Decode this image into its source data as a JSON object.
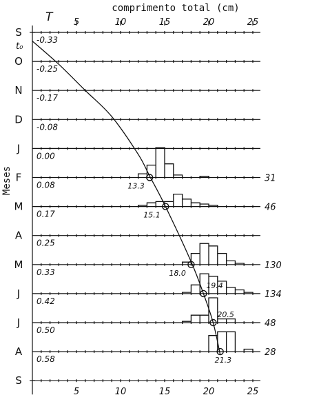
{
  "chart_data": {
    "type": "line",
    "title": "",
    "xlabel": "comprimento total (cm)",
    "ylabel": "Meses",
    "xlim": [
      0,
      25
    ],
    "x_ticks_top": [
      5,
      10,
      15,
      20,
      25
    ],
    "x_ticks_bottom": [
      5,
      10,
      15,
      20,
      25
    ],
    "t_label": "T",
    "t0_label": "t₀",
    "months": [
      "S",
      "O",
      "N",
      "D",
      "J",
      "F",
      "M",
      "A",
      "M",
      "J",
      "J",
      "A",
      "S"
    ],
    "age_labels": [
      "-0.33",
      "-0.25",
      "-0.17",
      "-0.08",
      "0.00",
      "0.08",
      "0.17",
      "0.25",
      "0.33",
      "0.42",
      "0.50",
      "0.58"
    ],
    "growth_curve": {
      "x": [
        0,
        3,
        6,
        9,
        12,
        13.3,
        15.1,
        18.0,
        19.4,
        20.5,
        21.3
      ],
      "month_index": [
        0.3,
        1.1,
        2.0,
        2.9,
        4.2,
        4.95,
        6.0,
        7.9,
        9.0,
        10.0,
        11.1
      ]
    },
    "mean_lengths": [
      {
        "month_index": 5,
        "x": 13.3,
        "label": "13.3"
      },
      {
        "month_index": 6,
        "x": 15.1,
        "label": "15.1"
      },
      {
        "month_index": 8,
        "x": 18.0,
        "label": "18.0"
      },
      {
        "month_index": 9,
        "x": 19.4,
        "label": "19.4"
      },
      {
        "month_index": 10,
        "x": 20.5,
        "label": "20.5"
      },
      {
        "month_index": 11,
        "x": 21.3,
        "label": "21.3"
      }
    ],
    "samples": [
      {
        "month_index": 5,
        "n": "31",
        "bins_x": [
          12,
          13,
          14,
          15,
          16,
          17,
          18,
          19,
          20,
          21,
          22
        ],
        "heights": [
          0.3,
          1.0,
          2.4,
          1.1,
          0.2,
          0.0,
          0.0,
          0.1,
          0.0,
          0.0,
          0.0
        ]
      },
      {
        "month_index": 6,
        "n": "46",
        "bins_x": [
          12,
          13,
          14,
          15,
          16,
          17,
          18,
          19,
          20
        ],
        "heights": [
          0.1,
          0.3,
          0.4,
          0.4,
          1.0,
          0.6,
          0.3,
          0.2,
          0.1
        ]
      },
      {
        "month_index": 8,
        "n": "130",
        "bins_x": [
          17,
          18,
          19,
          20,
          21,
          22,
          23
        ],
        "heights": [
          0.2,
          0.9,
          1.7,
          1.5,
          0.9,
          0.3,
          0.1
        ]
      },
      {
        "month_index": 9,
        "n": "134",
        "bins_x": [
          17,
          18,
          19,
          20,
          21,
          22,
          23,
          24,
          25
        ],
        "heights": [
          0.1,
          0.7,
          1.6,
          1.4,
          1.0,
          0.5,
          0.3,
          0.1,
          0.0
        ]
      },
      {
        "month_index": 10,
        "n": "48",
        "bins_x": [
          17,
          18,
          19,
          20,
          21,
          22,
          23
        ],
        "heights": [
          0.1,
          0.6,
          0.6,
          2.0,
          0.3,
          0.3,
          0.0
        ]
      },
      {
        "month_index": 11,
        "n": "28",
        "bins_x": [
          19,
          20,
          21,
          22,
          23,
          24,
          25
        ],
        "heights": [
          0.0,
          1.3,
          1.6,
          1.6,
          0.0,
          0.2,
          0.0
        ]
      }
    ]
  }
}
